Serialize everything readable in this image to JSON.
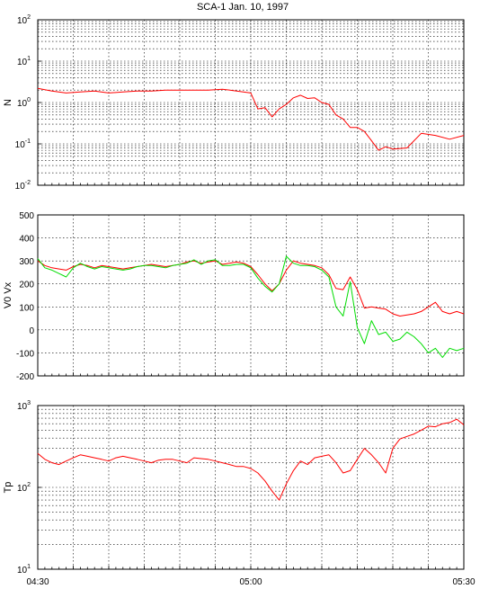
{
  "title": "SCA-1 Jan. 10, 1997",
  "x_tick_labels": [
    "04:30",
    "05:00",
    "05:30"
  ],
  "colors": {
    "red": "#ff0000",
    "green": "#00dd00",
    "grid": "#000000"
  },
  "chart_data": [
    {
      "type": "line",
      "ylabel": "N",
      "yscale": "log",
      "ylim": [
        0.01,
        100
      ],
      "yticks": [
        {
          "base": "10",
          "exp": "-2"
        },
        {
          "base": "10",
          "exp": "-1"
        },
        {
          "base": "10",
          "exp": "0"
        },
        {
          "base": "10",
          "exp": "1"
        },
        {
          "base": "10",
          "exp": "2"
        }
      ],
      "xlim": [
        "04:30",
        "05:30"
      ],
      "x": [
        0,
        2,
        4,
        6,
        8,
        10,
        12,
        14,
        16,
        18,
        20,
        22,
        24,
        26,
        28,
        30,
        31,
        32,
        33,
        34,
        35,
        36,
        37,
        38,
        39,
        40,
        41,
        42,
        43,
        44,
        45,
        46,
        47,
        48,
        49,
        50,
        52,
        54,
        56,
        58,
        60
      ],
      "series": [
        {
          "color": "#ff0000",
          "values": [
            2.2,
            1.9,
            1.7,
            1.8,
            1.9,
            1.7,
            1.8,
            1.9,
            1.9,
            2.0,
            2.0,
            2.0,
            2.0,
            2.1,
            1.9,
            1.7,
            0.7,
            0.75,
            0.45,
            0.7,
            0.9,
            1.3,
            1.5,
            1.25,
            1.3,
            1.0,
            0.9,
            0.5,
            0.4,
            0.25,
            0.25,
            0.2,
            0.12,
            0.07,
            0.085,
            0.075,
            0.08,
            0.18,
            0.16,
            0.13,
            0.16
          ]
        }
      ]
    },
    {
      "type": "line",
      "ylabel": "V0 Vx",
      "ylim": [
        -200,
        500
      ],
      "yticks": [
        "-200",
        "-100",
        "0",
        "100",
        "200",
        "300",
        "400",
        "500"
      ],
      "xlim": [
        "04:30",
        "05:30"
      ],
      "x": [
        0,
        1,
        2,
        3,
        4,
        5,
        6,
        7,
        8,
        9,
        10,
        11,
        12,
        13,
        14,
        15,
        16,
        17,
        18,
        19,
        20,
        21,
        22,
        23,
        24,
        25,
        26,
        27,
        28,
        29,
        30,
        31,
        32,
        33,
        34,
        35,
        36,
        37,
        38,
        39,
        40,
        41,
        42,
        43,
        44,
        45,
        46,
        47,
        48,
        49,
        50,
        51,
        52,
        53,
        54,
        55,
        56,
        57,
        58,
        59,
        60
      ],
      "series": [
        {
          "color": "#ff0000",
          "values": [
            300,
            280,
            270,
            265,
            260,
            275,
            285,
            280,
            270,
            280,
            275,
            270,
            265,
            270,
            275,
            280,
            285,
            280,
            275,
            280,
            285,
            295,
            300,
            290,
            295,
            300,
            285,
            290,
            295,
            290,
            275,
            240,
            200,
            170,
            200,
            260,
            300,
            290,
            285,
            280,
            270,
            240,
            180,
            175,
            230,
            175,
            95,
            100,
            95,
            90,
            70,
            60,
            65,
            70,
            80,
            100,
            120,
            80,
            70,
            80,
            70
          ]
        },
        {
          "color": "#00dd00",
          "values": [
            310,
            270,
            260,
            245,
            230,
            270,
            290,
            275,
            265,
            275,
            270,
            265,
            260,
            265,
            275,
            280,
            280,
            275,
            270,
            280,
            285,
            290,
            305,
            285,
            300,
            305,
            280,
            280,
            285,
            285,
            270,
            225,
            190,
            165,
            200,
            320,
            290,
            280,
            280,
            275,
            260,
            230,
            100,
            60,
            210,
            10,
            -60,
            40,
            -20,
            -10,
            -50,
            -40,
            -10,
            -30,
            -60,
            -100,
            -80,
            -120,
            -80,
            -90,
            -80
          ]
        }
      ]
    },
    {
      "type": "line",
      "ylabel": "Tp",
      "yscale": "log",
      "ylim": [
        10,
        1000
      ],
      "yticks": [
        {
          "base": "10",
          "exp": "1"
        },
        {
          "base": "10",
          "exp": "2"
        },
        {
          "base": "10",
          "exp": "3"
        }
      ],
      "xlim": [
        "04:30",
        "05:30"
      ],
      "x": [
        0,
        1,
        2,
        3,
        4,
        5,
        6,
        7,
        8,
        9,
        10,
        11,
        12,
        13,
        14,
        15,
        16,
        17,
        18,
        19,
        20,
        21,
        22,
        23,
        24,
        25,
        26,
        27,
        28,
        29,
        30,
        31,
        32,
        33,
        34,
        35,
        36,
        37,
        38,
        39,
        40,
        41,
        42,
        43,
        44,
        45,
        46,
        47,
        48,
        49,
        50,
        51,
        52,
        53,
        54,
        55,
        56,
        57,
        58,
        59,
        60
      ],
      "series": [
        {
          "color": "#ff0000",
          "values": [
            260,
            220,
            200,
            190,
            210,
            230,
            250,
            240,
            230,
            220,
            210,
            230,
            240,
            230,
            220,
            210,
            200,
            215,
            220,
            220,
            210,
            200,
            230,
            225,
            220,
            210,
            200,
            190,
            180,
            180,
            170,
            150,
            120,
            90,
            70,
            110,
            160,
            210,
            190,
            230,
            240,
            250,
            200,
            150,
            160,
            220,
            300,
            250,
            200,
            150,
            300,
            390,
            420,
            450,
            500,
            560,
            550,
            600,
            620,
            680,
            580
          ]
        }
      ]
    }
  ]
}
